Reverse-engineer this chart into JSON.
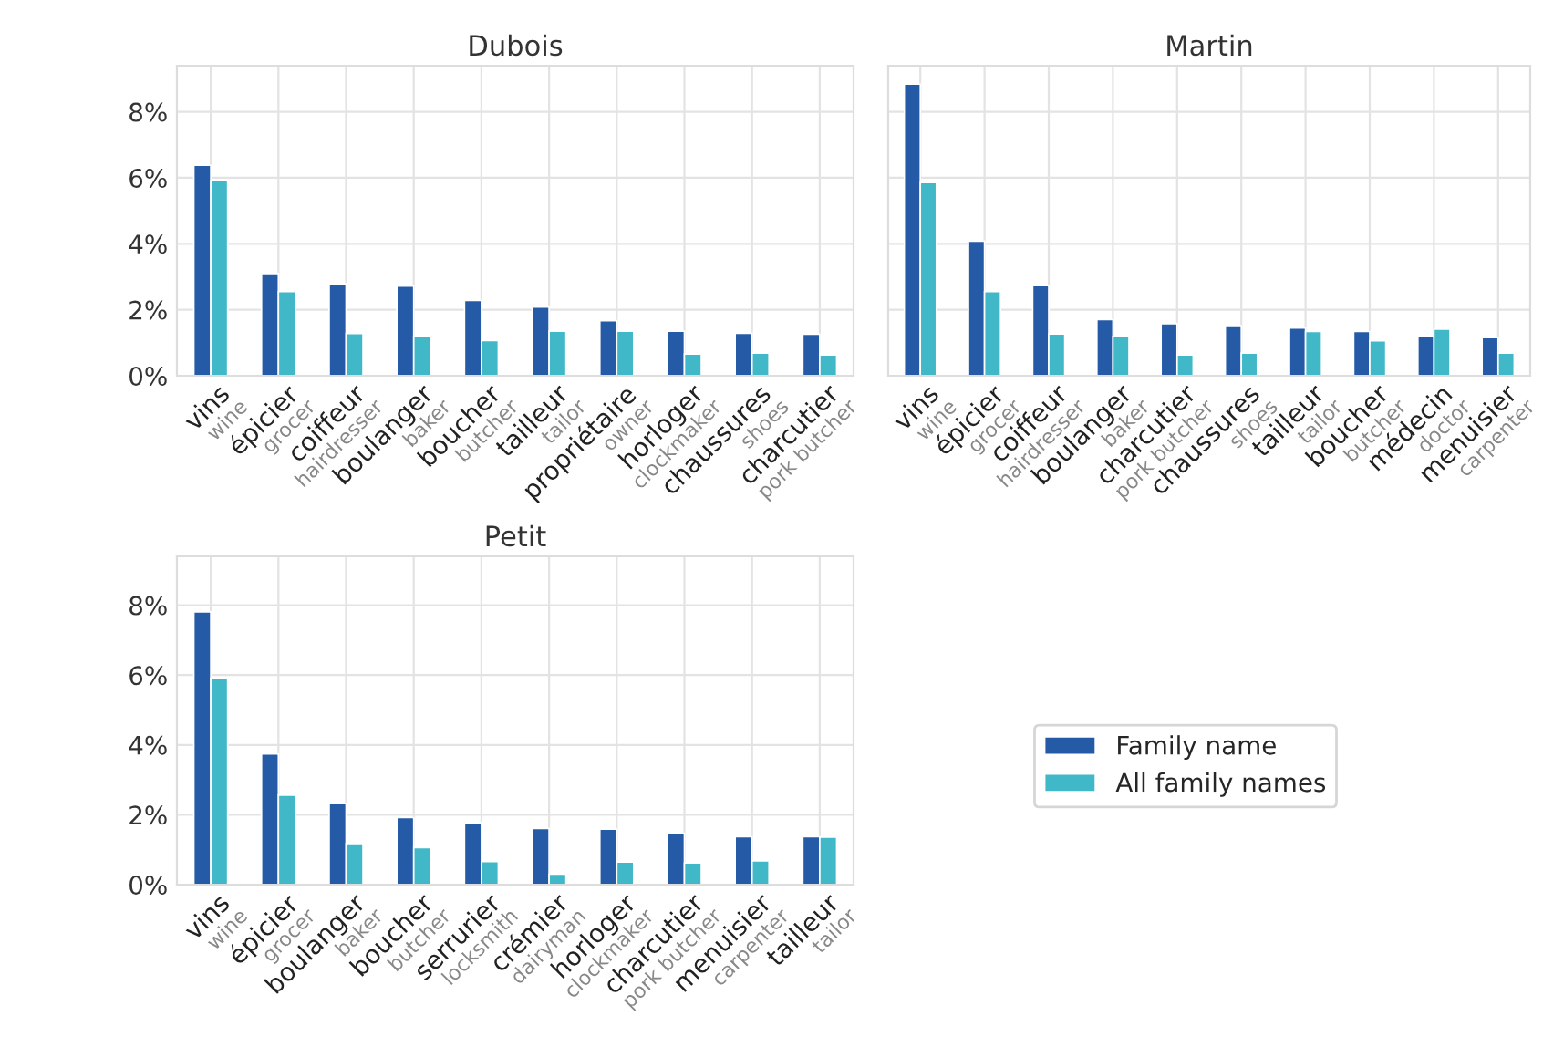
{
  "chart_data": [
    {
      "type": "bar",
      "title": "Dubois",
      "categories": [
        "vins\nwine",
        "épicier\ngrocer",
        "coiffeur\nhairdresser",
        "boulanger\nbaker",
        "boucher\nbutcher",
        "tailleur\ntailor",
        "propriétaire\nowner",
        "horloger\nclockmaker",
        "chaussures\nshoes",
        "charcutier\npork butcher"
      ],
      "series": [
        {
          "name": "Family name",
          "color": "#255ba6",
          "values": [
            6.38,
            3.1,
            2.79,
            2.72,
            2.28,
            2.08,
            1.67,
            1.35,
            1.29,
            1.26
          ]
        },
        {
          "name": "All family names",
          "color": "#40b8c8",
          "values": [
            5.91,
            2.55,
            1.28,
            1.2,
            1.07,
            1.35,
            1.35,
            0.66,
            0.69,
            0.63
          ]
        }
      ],
      "ylim": [
        0,
        9.4
      ],
      "yticks": [
        {
          "value": 0,
          "label": "0%"
        },
        {
          "value": 2,
          "label": "2%"
        },
        {
          "value": 4,
          "label": "4%"
        },
        {
          "value": 6,
          "label": "6%"
        },
        {
          "value": 8,
          "label": "8%"
        }
      ],
      "grid": true,
      "legend": "bottom right"
    },
    {
      "type": "bar",
      "title": "Martin",
      "categories": [
        "vins\nwine",
        "épicier\ngrocer",
        "coiffeur\nhairdresser",
        "boulanger\nbaker",
        "charcutier\npork butcher",
        "chaussures\nshoes",
        "tailleur\ntailor",
        "boucher\nbutcher",
        "médecin\ndoctor",
        "menuisier\ncarpenter"
      ],
      "series": [
        {
          "color": "#255ba6",
          "values": [
            8.84,
            4.08,
            2.73,
            1.7,
            1.58,
            1.52,
            1.45,
            1.34,
            1.19,
            1.16
          ]
        },
        {
          "color": "#40b8c8",
          "values": [
            5.86,
            2.55,
            1.27,
            1.19,
            0.63,
            0.69,
            1.34,
            1.06,
            1.41,
            0.69
          ]
        }
      ],
      "ylim": [
        0,
        9.4
      ],
      "yticks": [
        {
          "value": 0,
          "label": null
        },
        {
          "value": 2,
          "label": null
        },
        {
          "value": 4,
          "label": null
        },
        {
          "value": 6,
          "label": null
        },
        {
          "value": 8,
          "label": null
        }
      ],
      "grid": true,
      "tick_labels": "x"
    },
    {
      "type": "bar",
      "title": "Petit",
      "categories": [
        "vins\nwine",
        "épicier\ngrocer",
        "boulanger\nbaker",
        "boucher\nbutcher",
        "serrurier\nlocksmith",
        "crémier\ndairyman",
        "horloger\nclockmaker",
        "charcutier\npork butcher",
        "menuisier\ncarpenter",
        "tailleur\ntailor"
      ],
      "series": [
        {
          "color": "#255ba6",
          "values": [
            7.81,
            3.74,
            2.32,
            1.92,
            1.77,
            1.61,
            1.59,
            1.47,
            1.37,
            1.37
          ]
        },
        {
          "color": "#40b8c8",
          "values": [
            5.91,
            2.56,
            1.18,
            1.06,
            0.66,
            0.3,
            0.65,
            0.62,
            0.68,
            1.36
          ]
        }
      ],
      "ylim": [
        0,
        9.4
      ],
      "yticks": [
        {
          "value": 0,
          "label": "0%"
        },
        {
          "value": 2,
          "label": "2%"
        },
        {
          "value": 4,
          "label": "4%"
        },
        {
          "value": 6,
          "label": "6%"
        },
        {
          "value": 8,
          "label": "8%"
        }
      ],
      "grid": true
    }
  ]
}
